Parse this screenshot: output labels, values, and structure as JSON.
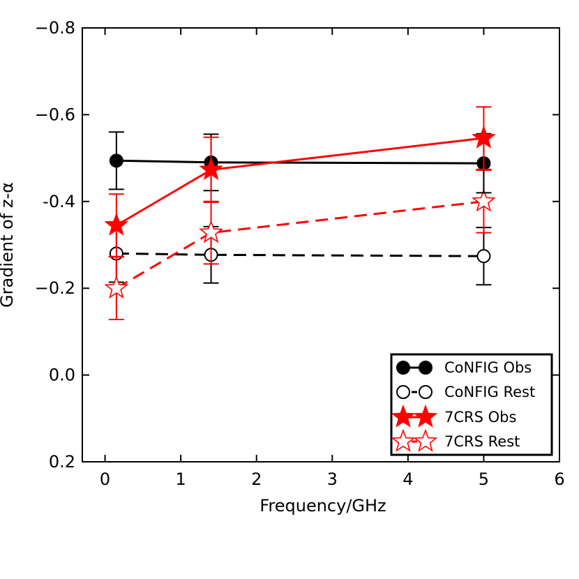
{
  "chart_data": {
    "type": "line",
    "title": "",
    "xlabel": "Frequency/GHz",
    "ylabel": "Gradient of z-α",
    "xlim": [
      -0.3,
      6
    ],
    "ylim": [
      0.2,
      -0.8
    ],
    "y_inverted": true,
    "xticks": [
      0,
      1,
      2,
      3,
      4,
      5,
      6
    ],
    "xtick_labels": [
      "0",
      "1",
      "2",
      "3",
      "4",
      "5",
      "6"
    ],
    "yticks": [
      -0.8,
      -0.6,
      -0.4,
      -0.2,
      0.0,
      0.2
    ],
    "ytick_labels": [
      "−0.8",
      "−0.6",
      "-0.4",
      "−0.2",
      "0.0",
      "0.2"
    ],
    "grid": false,
    "legend_position": "bottom-right",
    "series": [
      {
        "name": "CoNFIG Obs",
        "color": "#000000",
        "marker": "circle",
        "filled": true,
        "linestyle": "solid",
        "x": [
          0.15,
          1.4,
          5.0
        ],
        "y": [
          -0.494,
          -0.49,
          -0.488
        ],
        "err": [
          0.066,
          0.065,
          0.068
        ]
      },
      {
        "name": "CoNFIG Rest",
        "color": "#000000",
        "marker": "circle",
        "filled": false,
        "linestyle": "dashed",
        "x": [
          0.15,
          1.4,
          5.0
        ],
        "y": [
          -0.28,
          -0.277,
          -0.274
        ],
        "err": [
          0.066,
          0.065,
          0.066
        ]
      },
      {
        "name": "7CRS Obs",
        "color": "#ff0000",
        "marker": "star",
        "filled": true,
        "linestyle": "solid",
        "x": [
          0.15,
          1.4,
          5.0
        ],
        "y": [
          -0.345,
          -0.473,
          -0.546
        ],
        "err": [
          0.072,
          0.075,
          0.072
        ]
      },
      {
        "name": "7CRS Rest",
        "color": "#ff0000",
        "marker": "star",
        "filled": false,
        "linestyle": "dashed",
        "x": [
          0.15,
          1.4,
          5.0
        ],
        "y": [
          -0.2,
          -0.328,
          -0.4
        ],
        "err": [
          0.072,
          0.072,
          0.072
        ]
      }
    ]
  }
}
